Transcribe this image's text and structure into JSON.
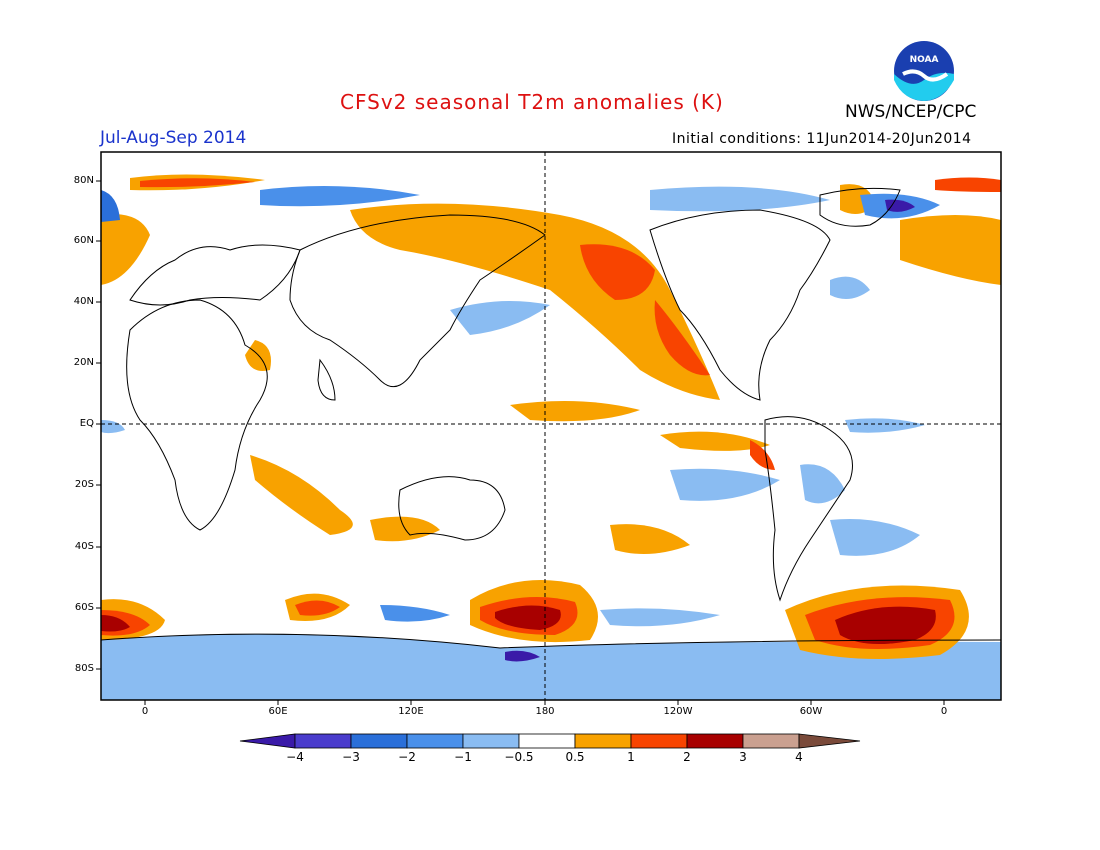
{
  "title": "CFSv2 seasonal T2m anomalies (K)",
  "period": "Jul-Aug-Sep 2014",
  "agency": "NWS/NCEP/CPC",
  "initial_conditions": "Initial conditions: 11Jun2014-20Jun2014",
  "logo_text": "NOAA",
  "lat_labels": [
    "80N",
    "60N",
    "40N",
    "20N",
    "EQ",
    "20S",
    "40S",
    "60S",
    "80S"
  ],
  "lon_labels": [
    "0",
    "60E",
    "120E",
    "180",
    "120W",
    "60W",
    "0"
  ],
  "colorbar": {
    "labels": [
      "−4",
      "−3",
      "−2",
      "−1",
      "−0.5",
      "0.5",
      "1",
      "2",
      "3",
      "4"
    ],
    "colors": [
      "#3a1aa8",
      "#4a3ccc",
      "#2a6fd9",
      "#4a90ea",
      "#8abcf2",
      "#ffffff",
      "#f8a200",
      "#f84400",
      "#a80000",
      "#caa090",
      "#7a4a3a"
    ]
  }
}
